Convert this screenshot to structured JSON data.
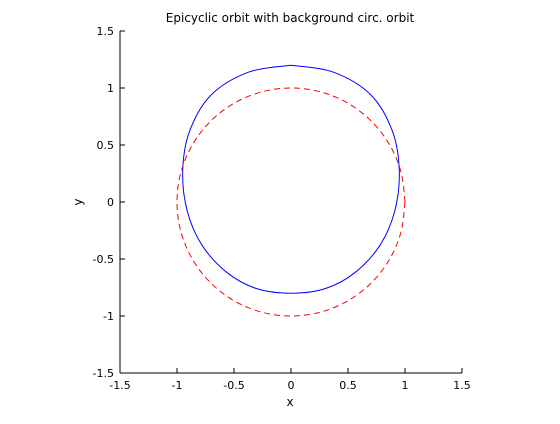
{
  "chart_data": {
    "type": "line",
    "title": "Epicyclic orbit with background circ. orbit",
    "xlabel": "x",
    "ylabel": "y",
    "xlim": [
      -1.5,
      1.5
    ],
    "ylim": [
      -1.5,
      1.5
    ],
    "xticks": [
      "-1.5",
      "-1",
      "-0.5",
      "0",
      "0.5",
      "1",
      "1.5"
    ],
    "yticks": [
      "1.5",
      "1",
      "0.5",
      "0",
      "-0.5",
      "-1",
      "-1.5"
    ],
    "xtick_values": [
      -1.5,
      -1,
      -0.5,
      0,
      0.5,
      1,
      1.5
    ],
    "ytick_values": [
      1.5,
      1,
      0.5,
      0,
      -0.5,
      -1,
      -1.5
    ],
    "grid": false,
    "series": [
      {
        "color": "#0000ff",
        "style": "solid",
        "x": [
          0,
          0.37,
          0.7,
          0.89,
          0.95,
          0.91,
          0.78,
          0.56,
          0.3,
          0,
          -0.3,
          -0.56,
          -0.78,
          -0.91,
          -0.95,
          -0.89,
          -0.7,
          -0.37,
          0
        ],
        "y": [
          1.2,
          1.14,
          0.94,
          0.62,
          0.27,
          -0.08,
          -0.38,
          -0.62,
          -0.76,
          -0.8,
          -0.76,
          -0.62,
          -0.38,
          -0.08,
          0.27,
          0.62,
          0.94,
          1.14,
          1.2
        ]
      },
      {
        "color": "#ff0000",
        "style": "dashed",
        "x": [
          1.0,
          0.966,
          0.866,
          0.707,
          0.5,
          0.259,
          0,
          -0.259,
          -0.5,
          -0.707,
          -0.866,
          -0.966,
          -1.0,
          -0.966,
          -0.866,
          -0.707,
          -0.5,
          -0.259,
          0,
          0.259,
          0.5,
          0.707,
          0.866,
          0.966,
          1.0
        ],
        "y": [
          0,
          0.259,
          0.5,
          0.707,
          0.866,
          0.966,
          1.0,
          0.966,
          0.866,
          0.707,
          0.5,
          0.259,
          0,
          -0.259,
          -0.5,
          -0.707,
          -0.866,
          -0.966,
          -1.0,
          -0.966,
          -0.866,
          -0.707,
          -0.5,
          -0.259,
          0
        ]
      }
    ]
  }
}
